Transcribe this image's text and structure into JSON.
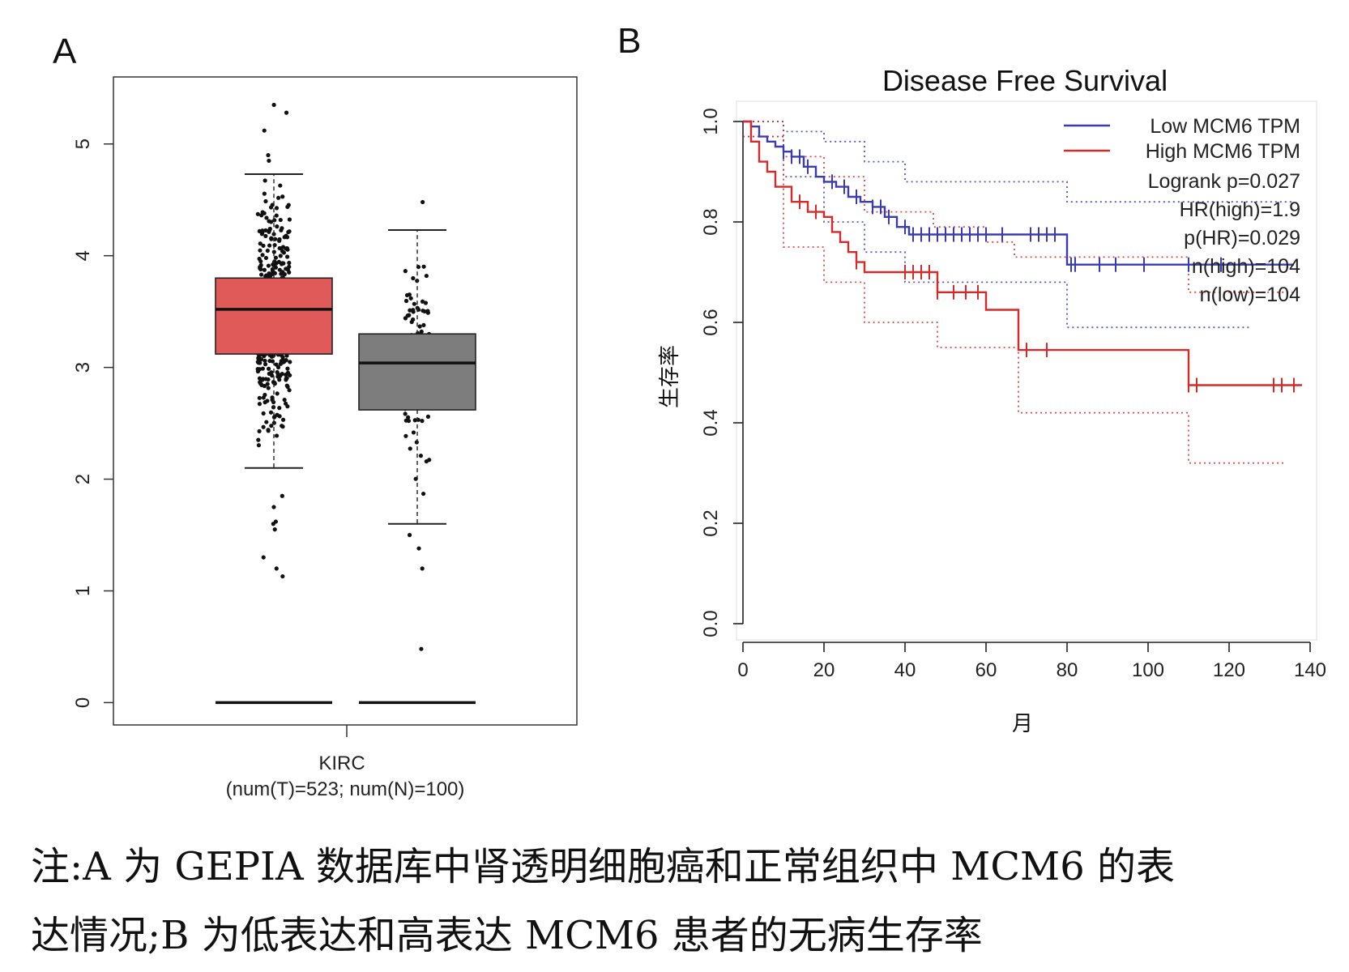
{
  "panels": {
    "a_label": "A",
    "b_label": "B"
  },
  "caption": {
    "line1": "注:A 为 GEPIA 数据库中肾透明细胞癌和正常组织中 MCM6 的表",
    "line2": "达情况;B 为低表达和高表达 MCM6 患者的无病生存率"
  },
  "chart_data": [
    {
      "type": "box",
      "panel": "A",
      "xlabel": "KIRC",
      "xlabel_sub": "(num(T)=523; num(N)=100)",
      "ylabel": "",
      "ylim": [
        -0.2,
        5.6
      ],
      "yticks": [
        0,
        1,
        2,
        3,
        4,
        5
      ],
      "colors": {
        "tumor": "#e05a5a",
        "normal": "#7d7d7d"
      },
      "boxes": [
        {
          "group": "T",
          "min": 2.1,
          "q1": 3.12,
          "median": 3.52,
          "q3": 3.8,
          "max": 4.73,
          "n": 523,
          "outliers": [
            5.35,
            5.28,
            5.12,
            4.9,
            4.85,
            1.85,
            1.75,
            1.62,
            1.6,
            1.55,
            1.3,
            1.2,
            1.13
          ]
        },
        {
          "group": "N",
          "min": 1.6,
          "q1": 2.62,
          "median": 3.04,
          "q3": 3.3,
          "max": 4.23,
          "n": 100,
          "outliers": [
            4.48,
            1.5,
            1.38,
            1.2,
            0.48
          ]
        }
      ],
      "baseline_y": 0
    },
    {
      "type": "line",
      "panel": "B",
      "title": "Disease Free Survival",
      "xlabel": "月",
      "ylabel": "生存率",
      "xlim": [
        0,
        140
      ],
      "ylim": [
        0,
        1.0
      ],
      "xticks": [
        0,
        20,
        40,
        60,
        80,
        100,
        120,
        140
      ],
      "yticks": [
        "0.0",
        "0.2",
        "0.4",
        "0.6",
        "0.8",
        "1.0"
      ],
      "legend_position": "top-right",
      "legend": [
        {
          "name": "Low MCM6 TPM",
          "color": "#3b3bb0"
        },
        {
          "name": "High MCM6 TPM",
          "color": "#d42a2a"
        }
      ],
      "stats": [
        "Logrank p=0.027",
        "HR(high)=1.9",
        "p(HR)=0.029",
        "n(high)=104",
        "n(low)=104"
      ],
      "series": [
        {
          "name": "Low MCM6 TPM",
          "color": "#3b3bb0",
          "x": [
            0,
            2,
            4,
            6,
            8,
            10,
            12,
            15,
            18,
            20,
            23,
            26,
            29,
            32,
            35,
            38,
            41,
            79,
            80,
            136
          ],
          "y": [
            1.0,
            0.99,
            0.97,
            0.96,
            0.95,
            0.94,
            0.93,
            0.91,
            0.89,
            0.88,
            0.87,
            0.85,
            0.84,
            0.83,
            0.81,
            0.79,
            0.775,
            0.775,
            0.715,
            0.715
          ]
        },
        {
          "name": "High MCM6 TPM",
          "color": "#d42a2a",
          "x": [
            0,
            2,
            4,
            6,
            8,
            12,
            16,
            20,
            22,
            24,
            26,
            28,
            30,
            47,
            48,
            57,
            60,
            67,
            68,
            108,
            110,
            138
          ],
          "y": [
            1.0,
            0.96,
            0.92,
            0.9,
            0.87,
            0.84,
            0.82,
            0.81,
            0.78,
            0.76,
            0.74,
            0.72,
            0.7,
            0.7,
            0.66,
            0.66,
            0.625,
            0.625,
            0.545,
            0.545,
            0.475,
            0.475
          ]
        },
        {
          "name": "Low upper",
          "style": "dotted",
          "color": "#3b3bb0",
          "x": [
            0,
            10,
            20,
            30,
            40,
            79,
            80,
            136
          ],
          "y": [
            1.0,
            0.98,
            0.96,
            0.92,
            0.88,
            0.88,
            0.84,
            0.84
          ]
        },
        {
          "name": "Low lower",
          "style": "dotted",
          "color": "#3b3bb0",
          "x": [
            0,
            10,
            20,
            30,
            40,
            79,
            80,
            125
          ],
          "y": [
            0.97,
            0.89,
            0.8,
            0.74,
            0.68,
            0.68,
            0.59,
            0.59
          ]
        },
        {
          "name": "High upper",
          "style": "dotted",
          "color": "#d42a2a",
          "x": [
            0,
            10,
            20,
            30,
            47,
            60,
            67,
            80,
            108,
            110,
            137
          ],
          "y": [
            1.0,
            0.93,
            0.89,
            0.82,
            0.79,
            0.76,
            0.73,
            0.73,
            0.73,
            0.66,
            0.66
          ]
        },
        {
          "name": "High lower",
          "style": "dotted",
          "color": "#d42a2a",
          "x": [
            0,
            10,
            20,
            30,
            47,
            48,
            60,
            67,
            68,
            108,
            110,
            134
          ],
          "y": [
            0.97,
            0.75,
            0.68,
            0.6,
            0.6,
            0.55,
            0.55,
            0.55,
            0.42,
            0.42,
            0.32,
            0.32
          ]
        }
      ],
      "censor_low": [
        10,
        12,
        14,
        16,
        22,
        25,
        28,
        32,
        34,
        36,
        40,
        42,
        44,
        46,
        48,
        50,
        52,
        54,
        56,
        58,
        60,
        64,
        71,
        73,
        75,
        77,
        81,
        82,
        88,
        92,
        99,
        110,
        118
      ],
      "censor_high": [
        14,
        18,
        28,
        40,
        42,
        44,
        46,
        48,
        52,
        55,
        58,
        70,
        75,
        110,
        112,
        131,
        133,
        136
      ]
    }
  ]
}
